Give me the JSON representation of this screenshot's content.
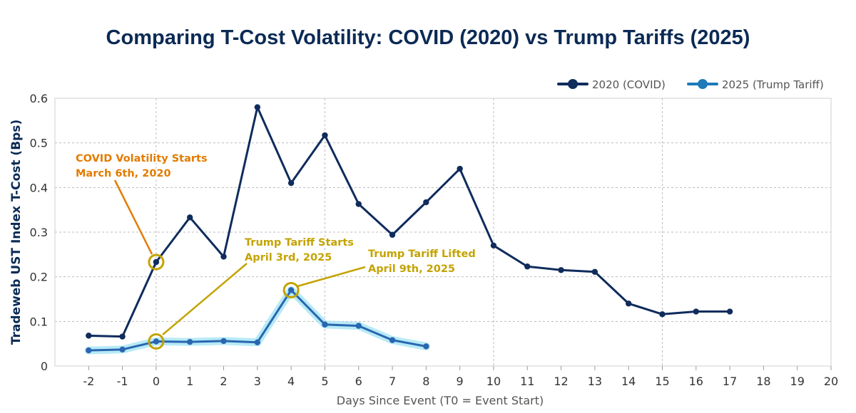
{
  "chart_data": {
    "type": "line",
    "title": "Comparing T-Cost Volatility: COVID (2020) vs Trump Tariffs (2025)",
    "xlabel": "Days Since Event (T0 = Event Start)",
    "ylabel": "Tradeweb UST Index T-Cost (Bps)",
    "xlim": [
      -3,
      20
    ],
    "ylim": [
      0,
      0.6
    ],
    "x_ticks": [
      "-2",
      "-1",
      "0",
      "1",
      "2",
      "3",
      "4",
      "5",
      "6",
      "7",
      "8",
      "9",
      "10",
      "11",
      "12",
      "13",
      "14",
      "15",
      "16",
      "17",
      "18",
      "19",
      "20"
    ],
    "y_ticks": [
      "0",
      "0.1",
      "0.2",
      "0.3",
      "0.4",
      "0.5",
      "0.6"
    ],
    "y_tick_values": [
      0,
      0.1,
      0.2,
      0.3,
      0.4,
      0.5,
      0.6
    ],
    "grid": true,
    "legend_position": "top-right",
    "series": [
      {
        "name": "2020 (COVID)",
        "color": "#0f2c5c",
        "x": [
          -2,
          -1,
          0,
          1,
          2,
          3,
          4,
          5,
          6,
          7,
          8,
          9,
          10,
          11,
          12,
          13,
          14,
          15,
          16,
          17
        ],
        "values": [
          0.068,
          0.066,
          0.233,
          0.333,
          0.245,
          0.58,
          0.41,
          0.517,
          0.363,
          0.294,
          0.367,
          0.442,
          0.27,
          0.223,
          0.215,
          0.211,
          0.14,
          0.116,
          0.122,
          0.122
        ]
      },
      {
        "name": "2025 (Trump Tariff)",
        "color": "#2a66b0",
        "glow": "#9fe3f3",
        "x": [
          -2,
          -1,
          0,
          1,
          2,
          3,
          4,
          5,
          6,
          7,
          8
        ],
        "values": [
          0.035,
          0.037,
          0.055,
          0.054,
          0.056,
          0.053,
          0.17,
          0.093,
          0.09,
          0.058,
          0.044
        ]
      }
    ],
    "annotations": [
      {
        "lines": [
          "COVID Volatility Starts",
          "March 6th, 2020"
        ],
        "color": "#e37b00",
        "target_x": 0,
        "target_y": 0.233
      },
      {
        "lines": [
          "Trump Tariff Starts",
          "April 3rd, 2025"
        ],
        "color": "#c4a300",
        "target_x": 0,
        "target_y": 0.055
      },
      {
        "lines": [
          "Trump Tariff Lifted",
          "April 9th, 2025"
        ],
        "color": "#c4a300",
        "target_x": 4,
        "target_y": 0.17
      }
    ],
    "highlight_color": "#c4a300"
  }
}
